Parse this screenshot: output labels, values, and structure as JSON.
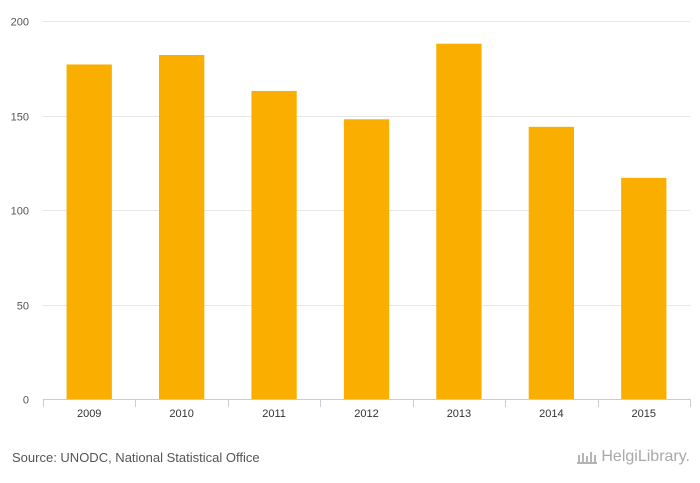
{
  "chart_data": {
    "type": "bar",
    "categories": [
      "2009",
      "2010",
      "2011",
      "2012",
      "2013",
      "2014",
      "2015"
    ],
    "values": [
      177,
      182,
      163,
      148,
      188,
      144,
      117
    ],
    "ylim": [
      0,
      200
    ],
    "yticks": [
      0,
      50,
      100,
      150,
      200
    ],
    "grid": true,
    "bar_color": "#f9ae00"
  },
  "footer": {
    "source": "Source: UNODC, National Statistical Office",
    "brand": "HelgiLibrary."
  }
}
